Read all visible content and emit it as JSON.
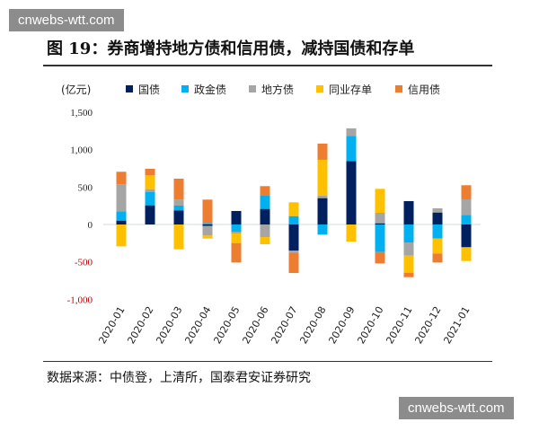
{
  "watermark_top": "cnwebs-wtt.com",
  "watermark_bottom": "cnwebs-wtt.com",
  "title": "图 19：券商增持地方债和信用债，减持国债和存单",
  "source": "数据来源：中债登，上清所，国泰君安证券研究",
  "chart_data": {
    "type": "bar",
    "stacked": true,
    "ylabel": "(亿元)",
    "ylim": [
      -1000,
      1500
    ],
    "yticks": [
      1500,
      1000,
      500,
      0,
      -500,
      -1000
    ],
    "ytick_labels": [
      "1,500",
      "1,000",
      "500",
      "0",
      "-500",
      "-1,000"
    ],
    "negative_tick_color": "#C00000",
    "grid": false,
    "legend": "top",
    "categories": [
      "2020-01",
      "2020-02",
      "2020-03",
      "2020-04",
      "2020-05",
      "2020-06",
      "2020-07",
      "2020-08",
      "2020-09",
      "2020-10",
      "2020-11",
      "2020-12",
      "2021-01"
    ],
    "series": [
      {
        "name": "国债",
        "color": "#002060",
        "values": [
          52,
          256,
          188,
          -20,
          180,
          208,
          -348,
          352,
          848,
          16,
          312,
          160,
          -304
        ]
      },
      {
        "name": "政金债",
        "color": "#00B0F0",
        "values": [
          124,
          180,
          64,
          20,
          -100,
          176,
          112,
          -136,
          336,
          -368,
          -240,
          -188,
          128
        ]
      },
      {
        "name": "地方债",
        "color": "#A5A5A5",
        "values": [
          360,
          36,
          80,
          -128,
          -20,
          -168,
          -28,
          32,
          100,
          140,
          -176,
          56,
          208
        ]
      },
      {
        "name": "同业存单",
        "color": "#FFC000",
        "values": [
          -292,
          184,
          -332,
          -40,
          -128,
          -96,
          184,
          480,
          -228,
          320,
          -228,
          -200,
          -184
        ]
      },
      {
        "name": "信用债",
        "color": "#ED7D31",
        "values": [
          168,
          88,
          280,
          312,
          -260,
          128,
          -272,
          216,
          0,
          -152,
          -60,
          -120,
          188
        ]
      }
    ]
  }
}
